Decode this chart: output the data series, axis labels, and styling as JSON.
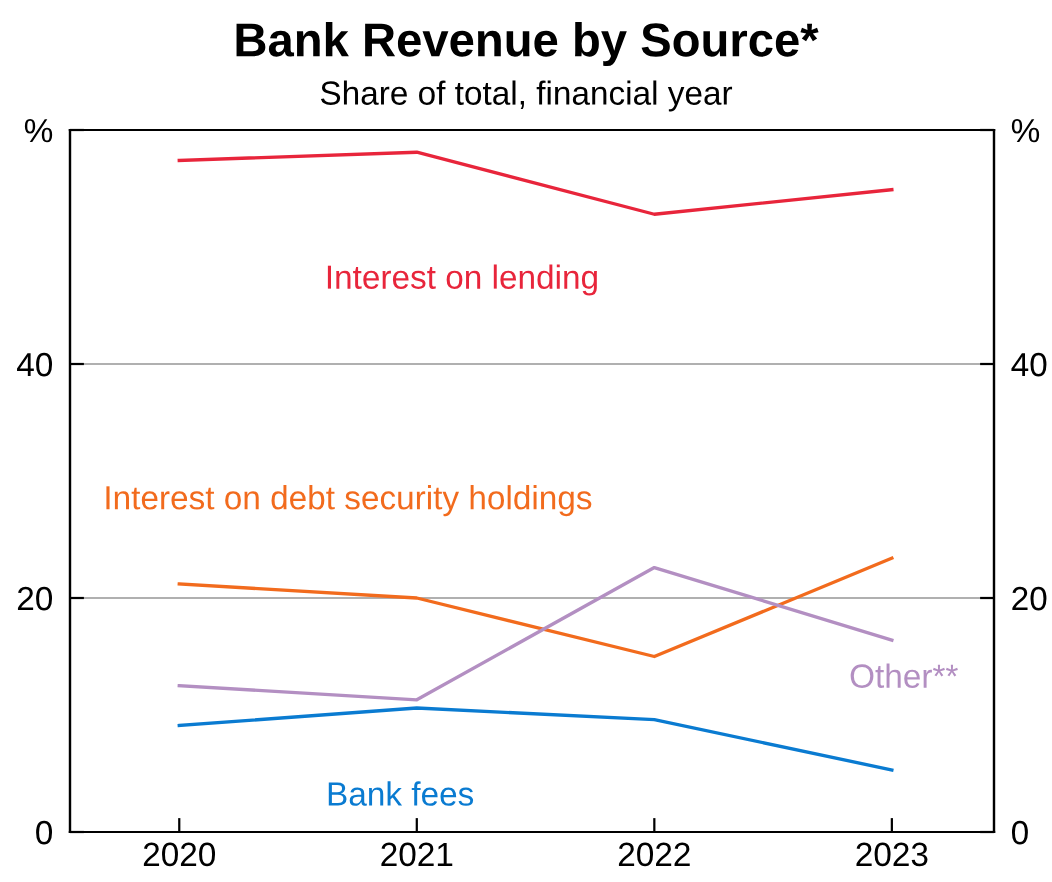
{
  "chart_data": {
    "type": "line",
    "title": "Bank Revenue by Source*",
    "subtitle": "Share of total, financial year",
    "categories": [
      "2020",
      "2021",
      "2022",
      "2023"
    ],
    "series": [
      {
        "name": "Interest on lending",
        "color": "#e8253b",
        "values": [
          57.4,
          58.1,
          52.8,
          54.9
        ]
      },
      {
        "name": "Interest on debt security holdings",
        "color": "#f26b1d",
        "values": [
          21.2,
          20.0,
          15.0,
          23.4
        ]
      },
      {
        "name": "Other**",
        "color": "#b38fc2",
        "values": [
          12.5,
          11.3,
          22.6,
          16.4
        ]
      },
      {
        "name": "Bank fees",
        "color": "#0a7bd1",
        "values": [
          9.1,
          10.6,
          9.6,
          5.3
        ]
      }
    ],
    "ylim": [
      0,
      60
    ],
    "yticks": [
      0,
      20,
      40,
      {
        "value": 60,
        "label": "%"
      }
    ],
    "y2lim": [
      0,
      60
    ],
    "y2ticks": [
      0,
      20,
      40,
      {
        "value": 60,
        "label": "%"
      }
    ],
    "grid": "y",
    "marker": "none",
    "line_style": "solid",
    "legend": false
  }
}
